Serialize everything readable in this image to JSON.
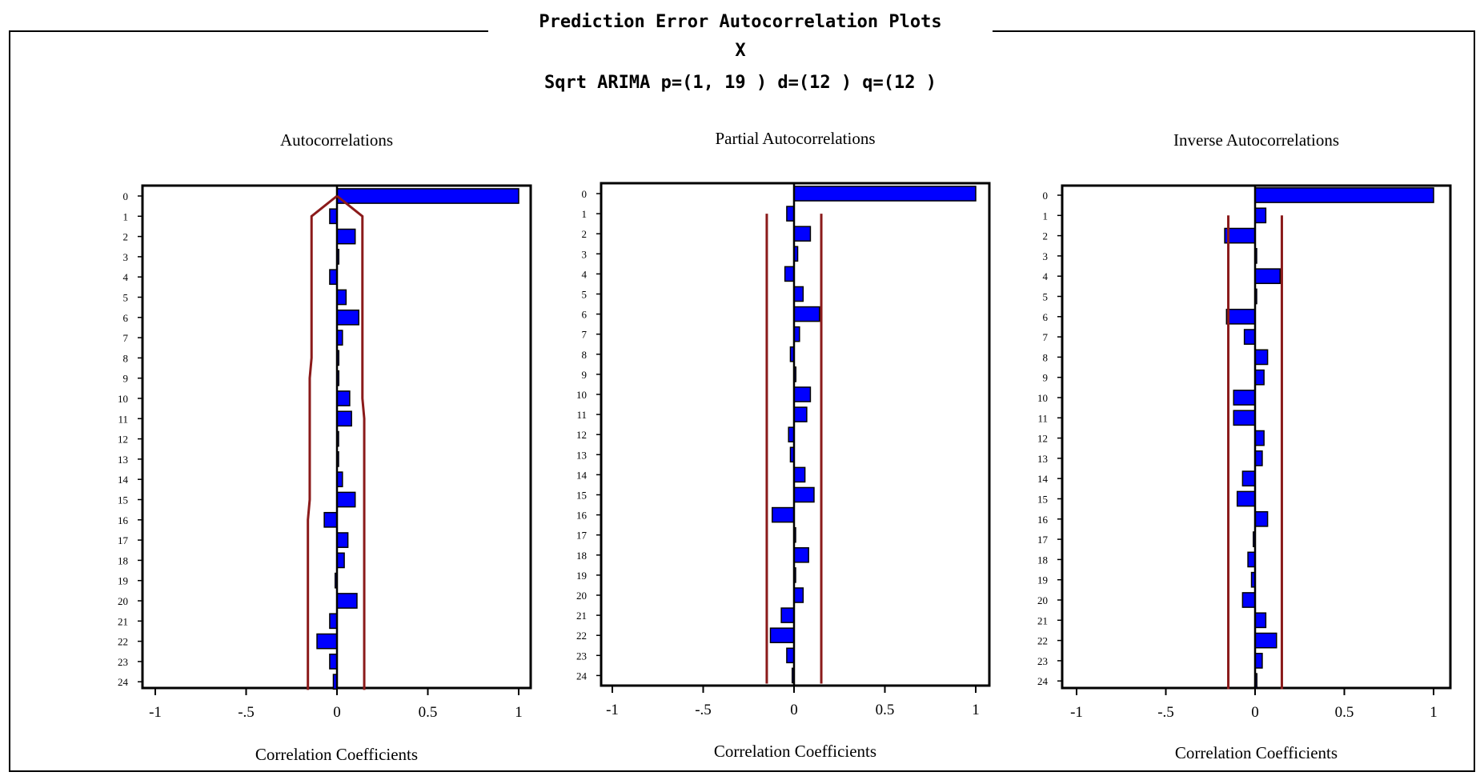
{
  "window": {
    "title": "Prediction Error Autocorrelation Plots",
    "variable": "X",
    "model": "Sqrt ARIMA p=(1, 19 ) d=(12 ) q=(12 )"
  },
  "colors": {
    "bar_fill": "#0000ff",
    "bar_edge": "#000000",
    "bound_line": "#8b1a1a",
    "axis": "#000000"
  },
  "chart_data": [
    {
      "type": "bar",
      "orientation": "horizontal",
      "title": "Autocorrelations",
      "xlabel": "Correlation Coefficients",
      "xlim": [
        -1,
        1
      ],
      "xticks": [
        "-1",
        "-.5",
        "0",
        "0.5",
        "1"
      ],
      "tick_values": [
        -1,
        -0.5,
        0,
        0.5,
        1
      ],
      "categories": [
        "0",
        "1",
        "2",
        "3",
        "4",
        "5",
        "6",
        "7",
        "8",
        "9",
        "10",
        "11",
        "12",
        "13",
        "14",
        "15",
        "16",
        "17",
        "18",
        "19",
        "20",
        "21",
        "22",
        "23",
        "24"
      ],
      "values": [
        1.0,
        -0.04,
        0.1,
        0.01,
        -0.04,
        0.05,
        0.12,
        0.03,
        0.01,
        0.01,
        0.07,
        0.08,
        0.0,
        0.0,
        0.03,
        0.1,
        -0.07,
        0.06,
        0.04,
        -0.01,
        0.11,
        -0.04,
        -0.11,
        -0.04,
        -0.02
      ],
      "confidence_bounds": {
        "upper": [
          0.0,
          0.14,
          0.14,
          0.14,
          0.14,
          0.14,
          0.14,
          0.14,
          0.14,
          0.14,
          0.14,
          0.15,
          0.15,
          0.15,
          0.15,
          0.15,
          0.15,
          0.15,
          0.15,
          0.15,
          0.15,
          0.15,
          0.15,
          0.15,
          0.15
        ],
        "lower": [
          0.0,
          -0.14,
          -0.14,
          -0.14,
          -0.14,
          -0.14,
          -0.14,
          -0.14,
          -0.14,
          -0.15,
          -0.15,
          -0.15,
          -0.15,
          -0.15,
          -0.15,
          -0.15,
          -0.16,
          -0.16,
          -0.16,
          -0.16,
          -0.16,
          -0.16,
          -0.16,
          -0.16,
          -0.16
        ]
      }
    },
    {
      "type": "bar",
      "orientation": "horizontal",
      "title": "Partial Autocorrelations",
      "xlabel": "Correlation Coefficients",
      "xlim": [
        -1,
        1
      ],
      "xticks": [
        "-1",
        "-.5",
        "0",
        "0.5",
        "1"
      ],
      "tick_values": [
        -1,
        -0.5,
        0,
        0.5,
        1
      ],
      "categories": [
        "0",
        "1",
        "2",
        "3",
        "4",
        "5",
        "6",
        "7",
        "8",
        "9",
        "10",
        "11",
        "12",
        "13",
        "14",
        "15",
        "16",
        "17",
        "18",
        "19",
        "20",
        "21",
        "22",
        "23",
        "24"
      ],
      "values": [
        1.0,
        -0.04,
        0.09,
        0.02,
        -0.05,
        0.05,
        0.14,
        0.03,
        -0.02,
        0.01,
        0.09,
        0.07,
        -0.03,
        -0.02,
        0.06,
        0.11,
        -0.12,
        0.0,
        0.08,
        0.0,
        0.05,
        -0.07,
        -0.13,
        -0.04,
        -0.01
      ],
      "confidence_bounds": {
        "upper": 0.15,
        "lower": -0.15
      }
    },
    {
      "type": "bar",
      "orientation": "horizontal",
      "title": "Inverse Autocorrelations",
      "xlabel": "Correlation Coefficients",
      "xlim": [
        -1,
        1
      ],
      "xticks": [
        "-1",
        "-.5",
        "0",
        "0.5",
        "1"
      ],
      "tick_values": [
        -1,
        -0.5,
        0,
        0.5,
        1
      ],
      "categories": [
        "0",
        "1",
        "2",
        "3",
        "4",
        "5",
        "6",
        "7",
        "8",
        "9",
        "10",
        "11",
        "12",
        "13",
        "14",
        "15",
        "16",
        "17",
        "18",
        "19",
        "20",
        "21",
        "22",
        "23",
        "24"
      ],
      "values": [
        1.0,
        0.06,
        -0.17,
        0.0,
        0.14,
        0.0,
        -0.16,
        -0.06,
        0.07,
        0.05,
        -0.12,
        -0.12,
        0.05,
        0.04,
        -0.07,
        -0.1,
        0.07,
        -0.01,
        -0.04,
        -0.02,
        -0.07,
        0.06,
        0.12,
        0.04,
        0.01
      ],
      "confidence_bounds": {
        "upper": 0.15,
        "lower": -0.15
      }
    }
  ]
}
